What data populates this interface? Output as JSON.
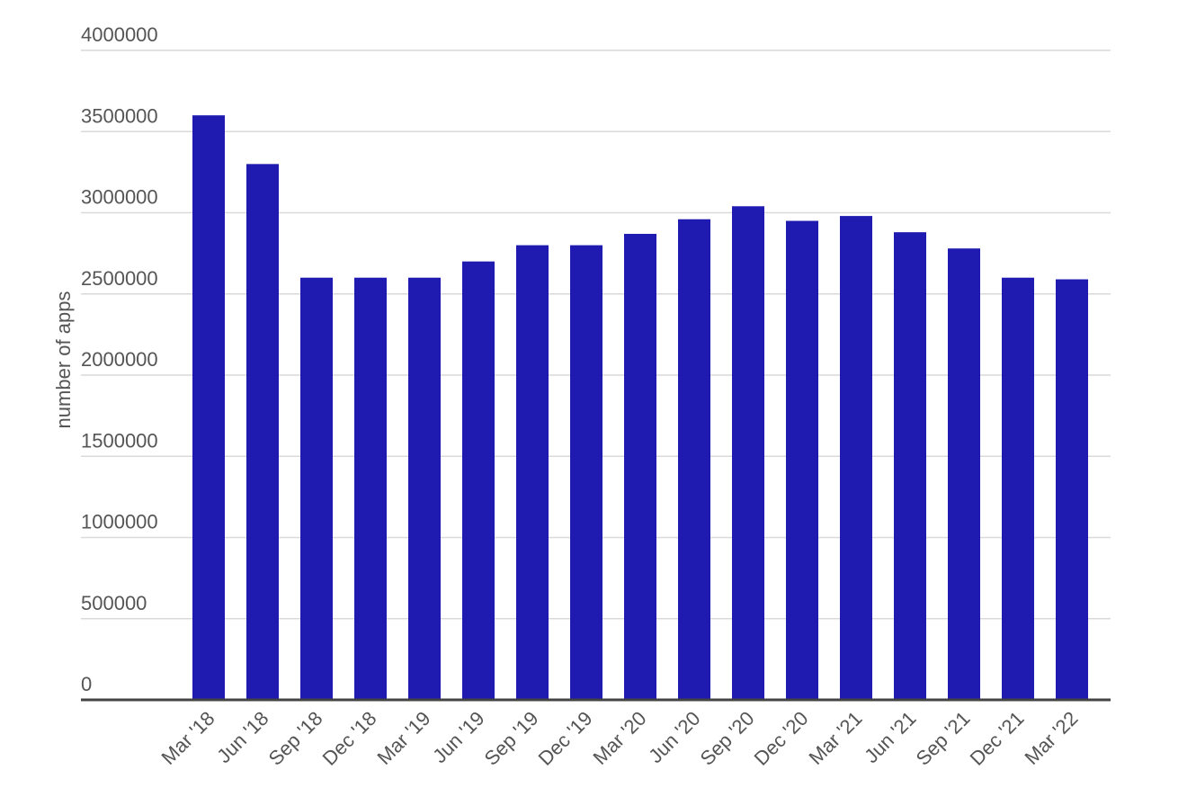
{
  "chart_data": {
    "type": "bar",
    "y_label": "number of apps",
    "categories": [
      "Mar '18",
      "Jun '18",
      "Sep '18",
      "Dec '18",
      "Mar '19",
      "Jun '19",
      "Sep '19",
      "Dec '19",
      "Mar '20",
      "Jun '20",
      "Sep '20",
      "Dec '20",
      "Mar '21",
      "Jun '21",
      "Sep '21",
      "Dec '21",
      "Mar '22"
    ],
    "values": [
      3600000,
      3300000,
      2600000,
      2600000,
      2600000,
      2700000,
      2800000,
      2800000,
      2870000,
      2960000,
      3040000,
      2950000,
      2980000,
      2880000,
      2780000,
      2600000,
      2590000
    ],
    "color": "#1f1ab0",
    "ylim": [
      0,
      4000000
    ],
    "yticks": [
      0,
      500000,
      1000000,
      1500000,
      2000000,
      2500000,
      3000000,
      3500000,
      4000000
    ],
    "grid": true
  }
}
